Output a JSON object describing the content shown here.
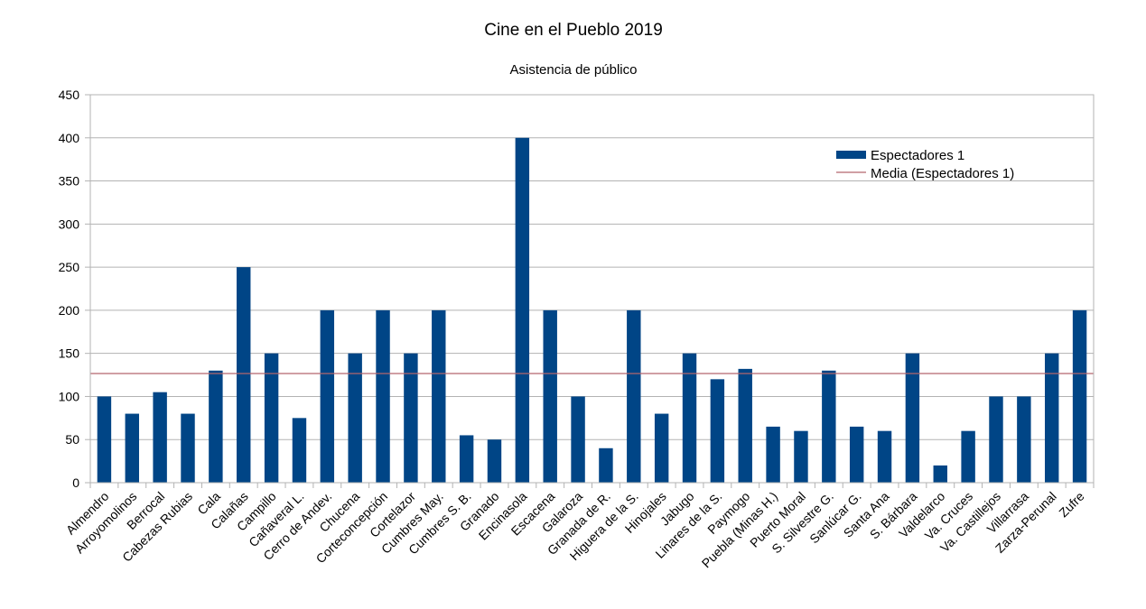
{
  "chart_data": {
    "type": "bar",
    "title": "Cine en el Pueblo 2019",
    "subtitle": "Asistencia de público",
    "xlabel": "",
    "ylabel": "",
    "ylim": [
      0,
      450
    ],
    "yticks": [
      0,
      50,
      100,
      150,
      200,
      250,
      300,
      350,
      400,
      450
    ],
    "grid": true,
    "legend_position": "top-right",
    "categories": [
      "Almendro",
      "Arroyomolinos",
      "Berrocal",
      "Cabezas Rubias",
      "Cala",
      "Calañas",
      "Campillo",
      "Cañaveral L.",
      "Cerro de Andev.",
      "Chucena",
      "Corteconcepción",
      "Cortelazor",
      "Cumbres May.",
      "Cumbres S. B.",
      "Granado",
      "Encinasola",
      "Escacena",
      "Galaroza",
      "Granada de R.",
      "Higuera de la S.",
      "Hinojales",
      "Jabugo",
      "Linares de la S.",
      "Paymogo",
      "Puebla (Minas H.)",
      "Puerto Moral",
      "S. Silvestre G.",
      "Sanlúcar G.",
      "Santa Ana",
      "S. Bárbara",
      "Valdelarco",
      "Va. Cruces",
      "Va. Castillejos",
      "Villarrasa",
      "Zarza-Perunal",
      "Zufre"
    ],
    "series": [
      {
        "name": "Espectadores 1",
        "color": "#004586",
        "values": [
          100,
          80,
          105,
          80,
          130,
          250,
          150,
          75,
          200,
          150,
          200,
          150,
          200,
          55,
          50,
          400,
          200,
          100,
          40,
          200,
          80,
          150,
          120,
          132,
          65,
          60,
          130,
          65,
          60,
          150,
          20,
          60,
          100,
          100,
          150,
          200
        ]
      }
    ],
    "mean_line": {
      "name": "Media (Espectadores 1)",
      "value": 126.6,
      "color": "#b3666e"
    }
  }
}
